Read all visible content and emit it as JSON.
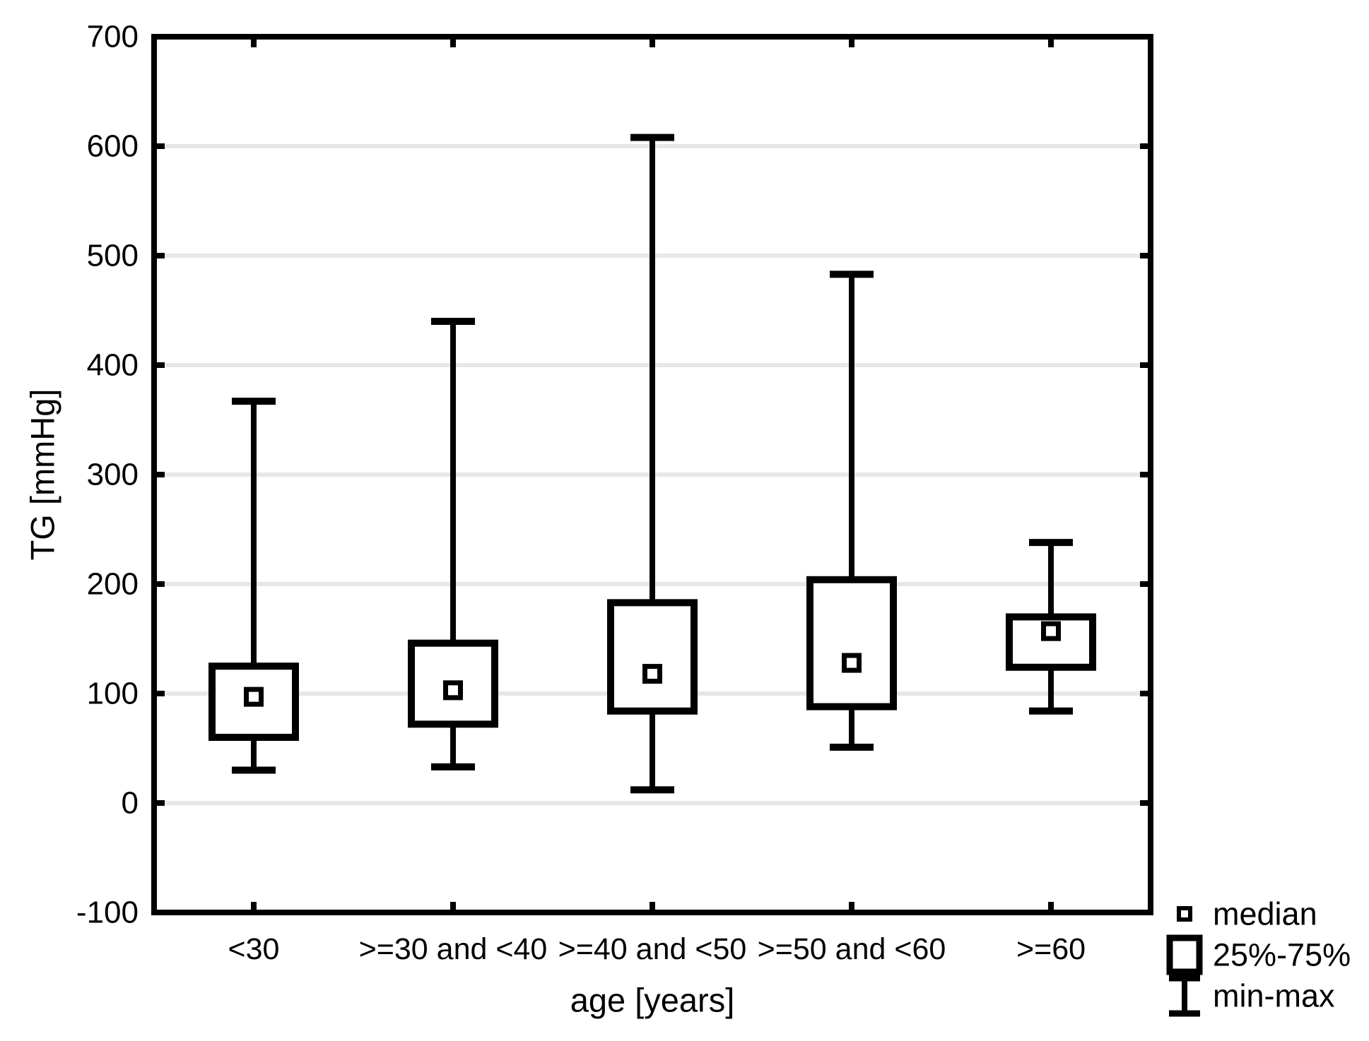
{
  "figure": {
    "background": "#ffffff"
  },
  "legend": {
    "position": "bottom-right",
    "items": [
      {
        "icon": "median-square-icon",
        "label": "median"
      },
      {
        "icon": "quartile-box-icon",
        "label": "25%-75%"
      },
      {
        "icon": "min-max-whisker-icon",
        "label": "min-max"
      }
    ]
  },
  "chart_data": {
    "type": "boxplot",
    "title": "",
    "xlabel": "age [years]",
    "ylabel": "TG [mmHg]",
    "categories": [
      "<30",
      ">=30 and <40",
      ">=40 and <50",
      ">=50 and <60",
      ">=60"
    ],
    "series": [
      {
        "category": "<30",
        "min": 30,
        "q1": 60,
        "median": 97,
        "q3": 125,
        "max": 367
      },
      {
        "category": ">=30 and <40",
        "min": 33,
        "q1": 72,
        "median": 103,
        "q3": 146,
        "max": 440
      },
      {
        "category": ">=40 and <50",
        "min": 12,
        "q1": 84,
        "median": 118,
        "q3": 183,
        "max": 608
      },
      {
        "category": ">=50 and <60",
        "min": 51,
        "q1": 88,
        "median": 128,
        "q3": 204,
        "max": 483
      },
      {
        "category": ">=60",
        "min": 84,
        "q1": 124,
        "median": 157,
        "q3": 170,
        "max": 238
      }
    ],
    "ylim": [
      -100,
      700
    ],
    "y_ticks": [
      -100,
      0,
      100,
      200,
      300,
      400,
      500,
      600,
      700
    ],
    "grid": "horizontal",
    "legend_position": "bottom-right",
    "colors": {
      "stroke": "#000000",
      "gridline": "#e7e7e7",
      "background": "#ffffff",
      "box_fill": "#ffffff"
    }
  }
}
